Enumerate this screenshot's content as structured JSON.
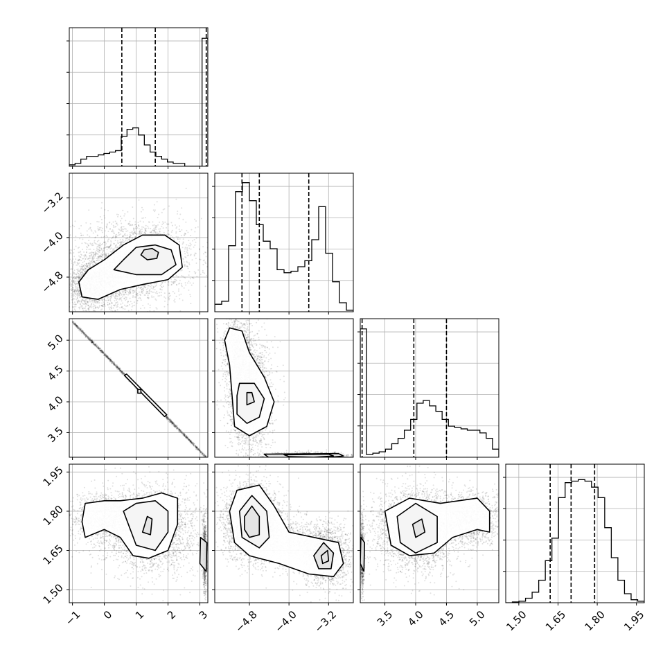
{
  "chart_data": {
    "type": "corner",
    "grid": true,
    "parameters": [
      {
        "range": [
          -1.1,
          3.25
        ],
        "ticks": [
          -1,
          0,
          1,
          2,
          3
        ],
        "tick_labels": [
          "−1",
          "0",
          "1",
          "2",
          "3"
        ],
        "quantiles": [
          0.55,
          1.6,
          3.2
        ],
        "hist_values": [
          1,
          2,
          5,
          7,
          7,
          8,
          9,
          10,
          11,
          21,
          26,
          27,
          22,
          15,
          10,
          7,
          5,
          3,
          2,
          2,
          0,
          0,
          0,
          90
        ],
        "hist_ylim": [
          0,
          95
        ]
      },
      {
        "range": [
          -5.5,
          -2.7
        ],
        "ticks": [
          -4.8,
          -4.0,
          -3.2
        ],
        "tick_labels": [
          "−4.8",
          "−4.0",
          "−3.2"
        ],
        "quantiles": [
          -4.95,
          -4.6,
          -3.6
        ],
        "hist_values": [
          5,
          7,
          44,
          80,
          86,
          74,
          58,
          47,
          42,
          28,
          26,
          27,
          30,
          34,
          48,
          70,
          39,
          20,
          6,
          1
        ],
        "hist_ylim": [
          0,
          90
        ]
      },
      {
        "range": [
          3.1,
          5.35
        ],
        "ticks": [
          3.5,
          4.0,
          4.5,
          5.0
        ],
        "tick_labels": [
          "3.5",
          "4.0",
          "4.5",
          "5.0"
        ],
        "quantiles": [
          3.13,
          3.97,
          4.5
        ],
        "hist_values": [
          95,
          2,
          3,
          4,
          6,
          10,
          14,
          20,
          28,
          40,
          42,
          38,
          34,
          28,
          23,
          22,
          21,
          20,
          20,
          18,
          14,
          6
        ],
        "hist_ylim": [
          0,
          100
        ]
      },
      {
        "range": [
          1.45,
          1.98
        ],
        "ticks": [
          1.5,
          1.65,
          1.8,
          1.95
        ],
        "tick_labels": [
          "1.50",
          "1.65",
          "1.80",
          "1.95"
        ],
        "quantiles": [
          1.62,
          1.7,
          1.79
        ],
        "hist_values": [
          0,
          0.5,
          1,
          3,
          7,
          15,
          28,
          43,
          70,
          80,
          81,
          82,
          81,
          77,
          70,
          50,
          30,
          15,
          6,
          2,
          1
        ],
        "hist_ylim": [
          0,
          90
        ]
      }
    ],
    "pairs": [
      {
        "row": 1,
        "col": 0,
        "blobs": [
          {
            "cx": 1.0,
            "cy": -4.45,
            "sx": 0.95,
            "sy": 0.42,
            "n": 2500
          },
          {
            "cx": 0.0,
            "cy": -4.9,
            "sx": 0.55,
            "sy": 0.28,
            "n": 1200
          },
          {
            "cx": -0.6,
            "cy": -5.05,
            "sx": 0.3,
            "sy": 0.22,
            "n": 500
          }
        ],
        "contours": [
          [
            [
              -0.7,
              -5.2
            ],
            [
              -0.2,
              -5.25
            ],
            [
              0.5,
              -5.05
            ],
            [
              1.2,
              -4.95
            ],
            [
              2.0,
              -4.85
            ],
            [
              2.45,
              -4.6
            ],
            [
              2.35,
              -4.15
            ],
            [
              1.9,
              -3.95
            ],
            [
              1.2,
              -3.95
            ],
            [
              0.6,
              -4.15
            ],
            [
              0.0,
              -4.45
            ],
            [
              -0.5,
              -4.65
            ],
            [
              -0.8,
              -4.9
            ]
          ],
          [
            [
              0.3,
              -4.65
            ],
            [
              1.0,
              -4.75
            ],
            [
              1.8,
              -4.75
            ],
            [
              2.25,
              -4.55
            ],
            [
              2.1,
              -4.25
            ],
            [
              1.6,
              -4.15
            ],
            [
              1.0,
              -4.2
            ],
            [
              0.6,
              -4.45
            ]
          ],
          [
            [
              1.15,
              -4.35
            ],
            [
              1.35,
              -4.45
            ],
            [
              1.65,
              -4.42
            ],
            [
              1.7,
              -4.3
            ],
            [
              1.5,
              -4.22
            ],
            [
              1.25,
              -4.25
            ]
          ]
        ]
      },
      {
        "row": 2,
        "col": 0,
        "blobs": [
          {
            "line": [
              [
                -1.0,
                5.3
              ],
              [
                3.2,
                3.1
              ]
            ],
            "spread": 0.012,
            "n": 1500
          }
        ],
        "contours": [
          [
            [
              0.63,
              4.43
            ],
            [
              0.7,
              4.45
            ],
            [
              1.96,
              3.79
            ],
            [
              1.89,
              3.76
            ]
          ],
          [
            [
              1.05,
              4.2
            ],
            [
              1.15,
              4.2
            ],
            [
              1.15,
              4.14
            ],
            [
              1.05,
              4.14
            ]
          ]
        ]
      },
      {
        "row": 2,
        "col": 1,
        "blobs": [
          {
            "cx": -4.8,
            "cy": 4.1,
            "sx": 0.22,
            "sy": 0.45,
            "n": 2200
          },
          {
            "cx": -5.05,
            "cy": 4.85,
            "sx": 0.15,
            "sy": 0.3,
            "n": 700
          },
          {
            "cx": -3.6,
            "cy": 3.12,
            "sx": 0.45,
            "sy": 0.03,
            "n": 900
          }
        ],
        "contours": [
          [
            [
              -5.2,
              5.2
            ],
            [
              -4.95,
              5.15
            ],
            [
              -4.8,
              4.8
            ],
            [
              -4.5,
              4.4
            ],
            [
              -4.3,
              4.0
            ],
            [
              -4.45,
              3.6
            ],
            [
              -4.8,
              3.45
            ],
            [
              -5.1,
              3.6
            ],
            [
              -5.15,
              4.1
            ],
            [
              -5.2,
              4.6
            ],
            [
              -5.3,
              5.0
            ]
          ],
          [
            [
              -5.0,
              4.3
            ],
            [
              -4.7,
              4.3
            ],
            [
              -4.5,
              4.05
            ],
            [
              -4.6,
              3.75
            ],
            [
              -4.85,
              3.65
            ],
            [
              -5.05,
              3.8
            ],
            [
              -5.05,
              4.1
            ]
          ],
          [
            [
              -4.85,
              4.15
            ],
            [
              -4.75,
              4.15
            ],
            [
              -4.7,
              4.0
            ],
            [
              -4.85,
              3.95
            ]
          ],
          [
            [
              -4.5,
              3.15
            ],
            [
              -3.0,
              3.16
            ],
            [
              -2.9,
              3.12
            ],
            [
              -3.4,
              3.08
            ],
            [
              -4.4,
              3.09
            ]
          ],
          [
            [
              -4.1,
              3.14
            ],
            [
              -3.2,
              3.15
            ],
            [
              -3.1,
              3.12
            ],
            [
              -3.5,
              3.1
            ],
            [
              -4.0,
              3.11
            ]
          ]
        ]
      },
      {
        "row": 3,
        "col": 0,
        "blobs": [
          {
            "cx": 1.5,
            "cy": 1.73,
            "sx": 0.75,
            "sy": 0.08,
            "n": 2500
          },
          {
            "cx": 0.0,
            "cy": 1.77,
            "sx": 0.55,
            "sy": 0.05,
            "n": 1200
          },
          {
            "cx": 3.15,
            "cy": 1.63,
            "sx": 0.03,
            "sy": 0.07,
            "n": 700
          }
        ],
        "contours": [
          [
            [
              -0.6,
              1.7
            ],
            [
              0.0,
              1.73
            ],
            [
              0.5,
              1.7
            ],
            [
              0.9,
              1.63
            ],
            [
              1.4,
              1.62
            ],
            [
              2.0,
              1.65
            ],
            [
              2.3,
              1.75
            ],
            [
              2.3,
              1.85
            ],
            [
              1.8,
              1.87
            ],
            [
              1.2,
              1.85
            ],
            [
              0.5,
              1.84
            ],
            [
              0.0,
              1.84
            ],
            [
              -0.6,
              1.83
            ],
            [
              -0.7,
              1.76
            ]
          ],
          [
            [
              0.6,
              1.8
            ],
            [
              1.0,
              1.67
            ],
            [
              1.6,
              1.65
            ],
            [
              2.0,
              1.72
            ],
            [
              2.0,
              1.8
            ],
            [
              1.6,
              1.84
            ],
            [
              1.0,
              1.83
            ]
          ],
          [
            [
              1.2,
              1.72
            ],
            [
              1.45,
              1.71
            ],
            [
              1.5,
              1.77
            ],
            [
              1.35,
              1.78
            ]
          ],
          [
            [
              3.0,
              1.6
            ],
            [
              3.2,
              1.57
            ],
            [
              3.22,
              1.68
            ],
            [
              3.02,
              1.7
            ]
          ]
        ]
      },
      {
        "row": 3,
        "col": 1,
        "blobs": [
          {
            "cx": -4.75,
            "cy": 1.76,
            "sx": 0.28,
            "sy": 0.07,
            "n": 3000
          },
          {
            "cx": -3.25,
            "cy": 1.63,
            "sx": 0.25,
            "sy": 0.06,
            "n": 1500
          },
          {
            "cx": -4.0,
            "cy": 1.68,
            "sx": 0.35,
            "sy": 0.05,
            "n": 700
          }
        ],
        "contours": [
          [
            [
              -5.2,
              1.8
            ],
            [
              -5.05,
              1.88
            ],
            [
              -4.6,
              1.9
            ],
            [
              -4.3,
              1.82
            ],
            [
              -4.0,
              1.72
            ],
            [
              -3.5,
              1.7
            ],
            [
              -3.0,
              1.68
            ],
            [
              -2.9,
              1.6
            ],
            [
              -3.1,
              1.55
            ],
            [
              -3.6,
              1.56
            ],
            [
              -4.2,
              1.6
            ],
            [
              -4.8,
              1.63
            ],
            [
              -5.1,
              1.68
            ]
          ],
          [
            [
              -5.0,
              1.8
            ],
            [
              -4.75,
              1.86
            ],
            [
              -4.45,
              1.8
            ],
            [
              -4.4,
              1.7
            ],
            [
              -4.6,
              1.66
            ],
            [
              -4.95,
              1.7
            ]
          ],
          [
            [
              -4.9,
              1.78
            ],
            [
              -4.75,
              1.82
            ],
            [
              -4.6,
              1.78
            ],
            [
              -4.6,
              1.71
            ],
            [
              -4.8,
              1.7
            ],
            [
              -4.9,
              1.73
            ]
          ],
          [
            [
              -3.5,
              1.63
            ],
            [
              -3.3,
              1.68
            ],
            [
              -3.1,
              1.64
            ],
            [
              -3.15,
              1.58
            ],
            [
              -3.4,
              1.58
            ]
          ],
          [
            [
              -3.35,
              1.63
            ],
            [
              -3.22,
              1.65
            ],
            [
              -3.2,
              1.61
            ],
            [
              -3.32,
              1.6
            ]
          ]
        ]
      },
      {
        "row": 3,
        "col": 2,
        "blobs": [
          {
            "cx": 4.0,
            "cy": 1.73,
            "sx": 0.35,
            "sy": 0.08,
            "n": 2500
          },
          {
            "cx": 4.9,
            "cy": 1.77,
            "sx": 0.25,
            "sy": 0.05,
            "n": 1200
          },
          {
            "cx": 3.13,
            "cy": 1.63,
            "sx": 0.015,
            "sy": 0.07,
            "n": 700
          }
        ],
        "contours": [
          [
            [
              3.5,
              1.8
            ],
            [
              3.9,
              1.85
            ],
            [
              4.4,
              1.83
            ],
            [
              5.0,
              1.85
            ],
            [
              5.2,
              1.8
            ],
            [
              5.2,
              1.72
            ],
            [
              5.0,
              1.73
            ],
            [
              4.6,
              1.7
            ],
            [
              4.3,
              1.64
            ],
            [
              3.9,
              1.63
            ],
            [
              3.6,
              1.67
            ]
          ],
          [
            [
              3.7,
              1.78
            ],
            [
              4.0,
              1.83
            ],
            [
              4.35,
              1.78
            ],
            [
              4.35,
              1.68
            ],
            [
              4.0,
              1.64
            ],
            [
              3.75,
              1.68
            ]
          ],
          [
            [
              3.95,
              1.75
            ],
            [
              4.1,
              1.77
            ],
            [
              4.15,
              1.72
            ],
            [
              4.0,
              1.7
            ]
          ],
          [
            [
              3.1,
              1.6
            ],
            [
              3.16,
              1.57
            ],
            [
              3.17,
              1.68
            ],
            [
              3.11,
              1.7
            ]
          ]
        ]
      }
    ]
  }
}
